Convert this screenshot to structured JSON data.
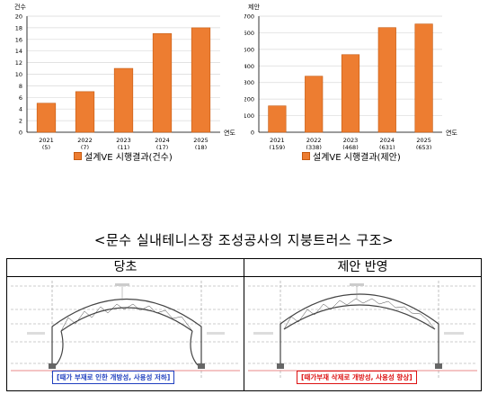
{
  "charts": [
    {
      "id": "left",
      "chart_data": {
        "type": "bar",
        "unit_label": "건수",
        "xlabel": "연도",
        "ylim": [
          0,
          20
        ],
        "yticks": [
          0,
          2,
          4,
          6,
          8,
          10,
          12,
          14,
          16,
          18,
          20
        ],
        "categories": [
          "2021",
          "2022",
          "2023",
          "2024",
          "2025"
        ],
        "sublabels": [
          "(5)",
          "(7)",
          "(11)",
          "(17)",
          "(18)"
        ],
        "series": [
          {
            "name": "설계VE 시행결과(건수)",
            "values": [
              5,
              7,
              11,
              17,
              18
            ]
          }
        ],
        "grid": true,
        "legend_position": "bottom"
      }
    },
    {
      "id": "right",
      "chart_data": {
        "type": "bar",
        "unit_label": "제안",
        "xlabel": "연도",
        "ylim": [
          0,
          700
        ],
        "yticks": [
          0,
          100,
          200,
          300,
          400,
          500,
          600,
          700
        ],
        "categories": [
          "2021",
          "2022",
          "2023",
          "2024",
          "2025"
        ],
        "sublabels": [
          "(159)",
          "(338)",
          "(468)",
          "(631)",
          "(653)"
        ],
        "series": [
          {
            "name": "설계VE 시행결과(제안)",
            "values": [
              159,
              338,
              468,
              631,
              653
            ]
          }
        ],
        "grid": true,
        "legend_position": "bottom"
      }
    }
  ],
  "colors": {
    "bar_fill": "#ed7d31",
    "bar_stroke": "#c55a11",
    "grid": "#d9d9d9",
    "note_before": "#1f3fbf",
    "note_after": "#dd1111"
  },
  "section_title": "<문수 실내테니스장 조성공사의 지붕트러스 구조>",
  "comparison": {
    "before": {
      "header": "당초",
      "note": "[때가 부재로 인한 개방성, 사용성 저하]"
    },
    "after": {
      "header": "제안 반영",
      "note": "[때가부재 삭제로 개방성, 사용성 향상]"
    }
  }
}
